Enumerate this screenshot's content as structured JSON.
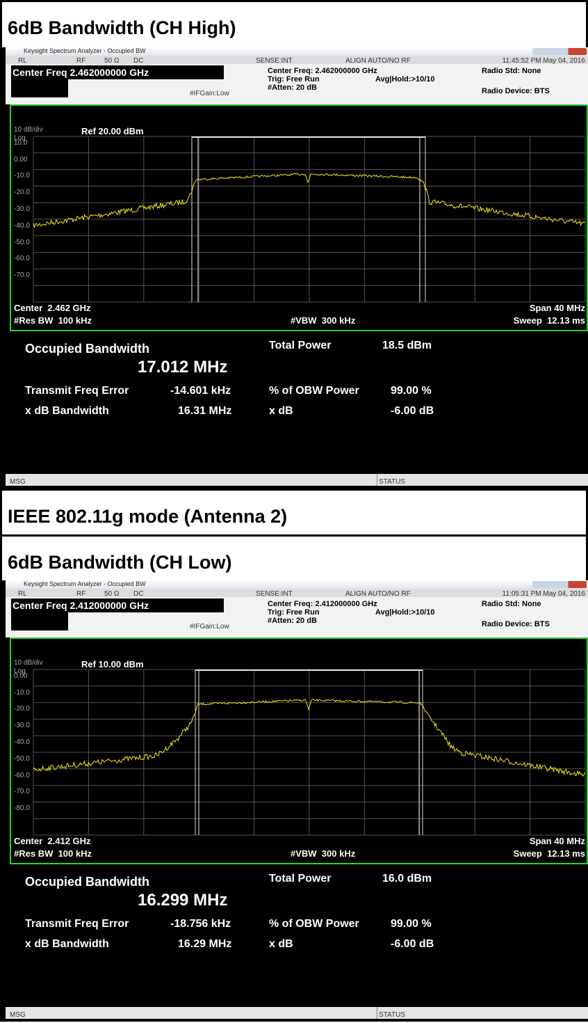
{
  "sections": [
    {
      "title": "6dB Bandwidth (CH High)",
      "analyzer": {
        "window_title": "Keysight Spectrum Analyzer - Occupied BW",
        "rl": "RL",
        "rf": "RF",
        "impedance": "50 Ω",
        "coupling": "DC",
        "sense": "SENSE:INT",
        "align": "ALIGN AUTO/NO RF",
        "timestamp": "11:45:52 PM May 04, 2016",
        "center_freq_box": "Center Freq 2.462000000 GHz",
        "center_freq": "Center Freq: 2.462000000 GHz",
        "trig": "Trig: Free Run",
        "atten": "#Atten: 20 dB",
        "avg_hold": "Avg|Hold:>10/10",
        "radio_std": "Radio Std: None",
        "radio_device": "Radio Device: BTS",
        "if_gain": "#IFGain:Low",
        "scale": "10 dB/div",
        "ref_level": "Ref 20.00 dBm",
        "log": "Log",
        "y_labels": [
          "10.0",
          "0.00",
          "-10.0",
          "-20.0",
          "-30.0",
          "-40.0",
          "-50.0",
          "-60.0",
          "-70.0"
        ],
        "center": "Center  2.462 GHz",
        "res_bw": "#Res BW  100 kHz",
        "vbw": "#VBW  300 kHz",
        "span": "Span 40 MHz",
        "sweep": "Sweep  12.13 ms",
        "obw_label": "Occupied Bandwidth",
        "obw_value": "17.012 MHz",
        "total_power_label": "Total Power",
        "total_power": "18.5 dBm",
        "tfe_label": "Transmit Freq Error",
        "tfe_value": "-14.601 kHz",
        "obw_pct_label": "% of OBW Power",
        "obw_pct": "99.00 %",
        "xdb_bw_label": "x dB Bandwidth",
        "xdb_bw": "16.31 MHz",
        "xdb_label": "x dB",
        "xdb": "-6.00 dB",
        "msg": "MSG",
        "status": "STATUS"
      }
    },
    {
      "title": "IEEE  802.11g  mode  (Antenna  2)"
    },
    {
      "title": "6dB Bandwidth (CH Low)",
      "analyzer": {
        "window_title": "Keysight Spectrum Analyzer - Occupied BW",
        "rl": "RL",
        "rf": "RF",
        "impedance": "50 Ω",
        "coupling": "DC",
        "sense": "SENSE:INT",
        "align": "ALIGN AUTO/NO RF",
        "timestamp": "11:05:31 PM May 04, 2016",
        "center_freq_box": "Center Freq 2.412000000 GHz",
        "center_freq": "Center Freq: 2.412000000 GHz",
        "trig": "Trig: Free Run",
        "atten": "#Atten: 20 dB",
        "avg_hold": "Avg|Hold:>10/10",
        "radio_std": "Radio Std: None",
        "radio_device": "Radio Device: BTS",
        "if_gain": "#IFGain:Low",
        "scale": "10 dB/div",
        "ref_level": "Ref 10.00 dBm",
        "log": "Log",
        "y_labels": [
          "0.00",
          "-10.0",
          "-20.0",
          "-30.0",
          "-40.0",
          "-50.0",
          "-60.0",
          "-70.0",
          "-80.0"
        ],
        "center": "Center  2.412 GHz",
        "res_bw": "#Res BW  100 kHz",
        "vbw": "#VBW  300 kHz",
        "span": "Span 40 MHz",
        "sweep": "Sweep  12.13 ms",
        "obw_label": "Occupied Bandwidth",
        "obw_value": "16.299 MHz",
        "total_power_label": "Total Power",
        "total_power": "16.0 dBm",
        "tfe_label": "Transmit Freq Error",
        "tfe_value": "-18.756 kHz",
        "obw_pct_label": "% of OBW Power",
        "obw_pct": "99.00 %",
        "xdb_bw_label": "x dB Bandwidth",
        "xdb_bw": "16.29 MHz",
        "xdb_label": "x dB",
        "xdb": "-6.00 dB",
        "msg": "MSG",
        "status": "STATUS"
      }
    }
  ]
}
